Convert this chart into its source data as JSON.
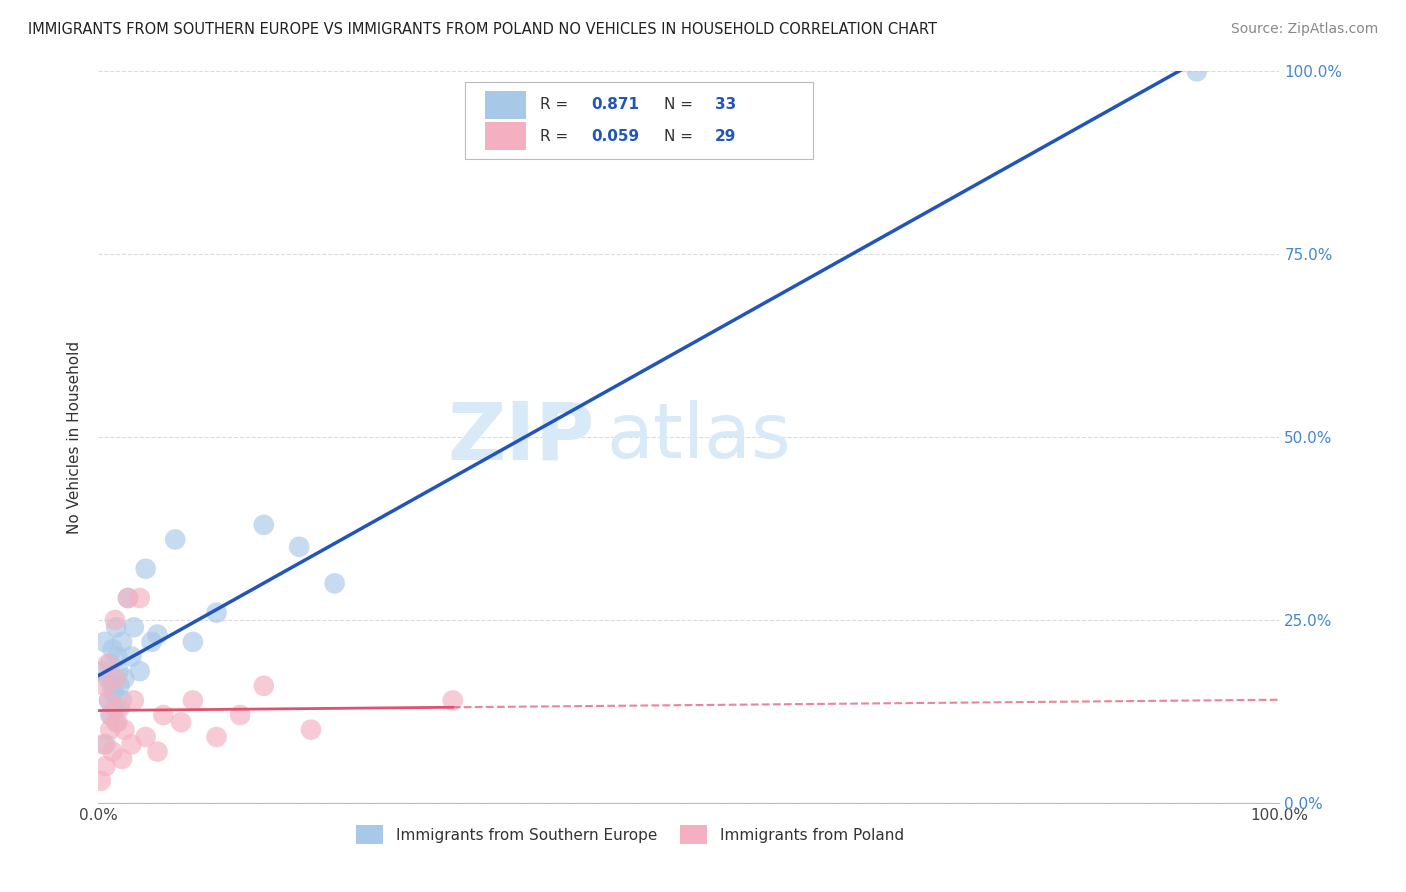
{
  "title": "IMMIGRANTS FROM SOUTHERN EUROPE VS IMMIGRANTS FROM POLAND NO VEHICLES IN HOUSEHOLD CORRELATION CHART",
  "source": "Source: ZipAtlas.com",
  "ylabel": "No Vehicles in Household",
  "xlim": [
    0,
    100
  ],
  "ylim": [
    0,
    100
  ],
  "yticks": [
    0,
    25,
    50,
    75,
    100
  ],
  "ytick_labels": [
    "0.0%",
    "25.0%",
    "50.0%",
    "75.0%",
    "100.0%"
  ],
  "blue_color": "#A8C8E8",
  "pink_color": "#F4B0C0",
  "blue_line_color": "#2255BB",
  "pink_line_color": "#E05070",
  "background_color": "#ffffff",
  "grid_color": "#cccccc",
  "watermark_zip": "ZIP",
  "watermark_atlas": "atlas",
  "watermark_color": "#d8eaf8",
  "blue_scatter_x": [
    0.3,
    0.5,
    0.6,
    0.8,
    0.9,
    1.0,
    1.0,
    1.1,
    1.2,
    1.3,
    1.4,
    1.5,
    1.5,
    1.6,
    1.7,
    1.8,
    2.0,
    2.0,
    2.2,
    2.5,
    2.8,
    3.0,
    3.5,
    4.0,
    4.5,
    5.0,
    6.5,
    8.0,
    10.0,
    14.0,
    17.0,
    20.0,
    93.0
  ],
  "blue_scatter_y": [
    18,
    22,
    8,
    17,
    14,
    12,
    19,
    16,
    21,
    15,
    13,
    11,
    24,
    20,
    18,
    16,
    22,
    14,
    17,
    28,
    20,
    24,
    18,
    32,
    22,
    23,
    36,
    22,
    26,
    38,
    35,
    30,
    100
  ],
  "pink_scatter_x": [
    0.2,
    0.4,
    0.5,
    0.6,
    0.8,
    0.9,
    1.0,
    1.1,
    1.2,
    1.4,
    1.5,
    1.6,
    1.8,
    2.0,
    2.2,
    2.5,
    2.8,
    3.0,
    3.5,
    4.0,
    5.0,
    5.5,
    7.0,
    8.0,
    10.0,
    12.0,
    14.0,
    18.0,
    30.0
  ],
  "pink_scatter_y": [
    3,
    8,
    16,
    5,
    19,
    14,
    10,
    12,
    7,
    25,
    17,
    11,
    13,
    6,
    10,
    28,
    8,
    14,
    28,
    9,
    7,
    12,
    11,
    14,
    9,
    12,
    16,
    10,
    14
  ],
  "pink_solid_x_end": 30.0,
  "blue_legend_text": "R =  0.871   N = 33",
  "pink_legend_text": "R =  0.059   N = 29"
}
